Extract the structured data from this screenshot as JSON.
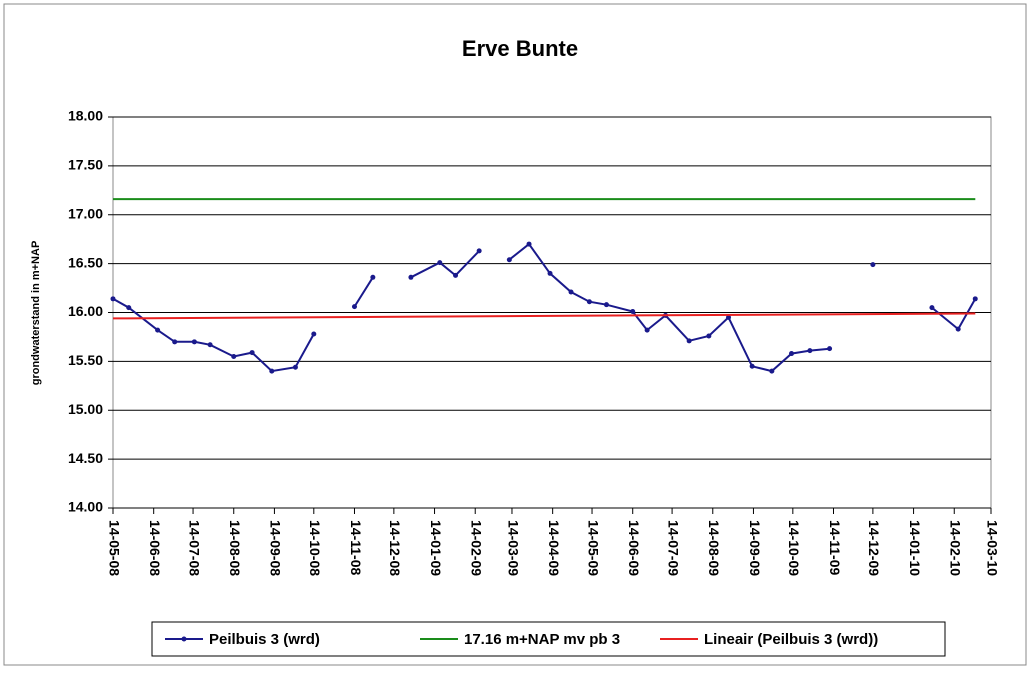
{
  "chart_data": {
    "type": "line",
    "title": "Erve Bunte",
    "y_label": "grondwaterstand in m+NAP",
    "xlim": [
      "2008-05-14",
      "2010-03-14"
    ],
    "xticks": [
      {
        "value": "2008-05-14",
        "label": "14-05-08"
      },
      {
        "value": "2008-06-14",
        "label": "14-06-08"
      },
      {
        "value": "2008-07-14",
        "label": "14-07-08"
      },
      {
        "value": "2008-08-14",
        "label": "14-08-08"
      },
      {
        "value": "2008-09-14",
        "label": "14-09-08"
      },
      {
        "value": "2008-10-14",
        "label": "14-10-08"
      },
      {
        "value": "2008-11-14",
        "label": "14-11-08"
      },
      {
        "value": "2008-12-14",
        "label": "14-12-08"
      },
      {
        "value": "2009-01-14",
        "label": "14-01-09"
      },
      {
        "value": "2009-02-14",
        "label": "14-02-09"
      },
      {
        "value": "2009-03-14",
        "label": "14-03-09"
      },
      {
        "value": "2009-04-14",
        "label": "14-04-09"
      },
      {
        "value": "2009-05-14",
        "label": "14-05-09"
      },
      {
        "value": "2009-06-14",
        "label": "14-06-09"
      },
      {
        "value": "2009-07-14",
        "label": "14-07-09"
      },
      {
        "value": "2009-08-14",
        "label": "14-08-09"
      },
      {
        "value": "2009-09-14",
        "label": "14-09-09"
      },
      {
        "value": "2009-10-14",
        "label": "14-10-09"
      },
      {
        "value": "2009-11-14",
        "label": "14-11-09"
      },
      {
        "value": "2009-12-14",
        "label": "14-12-09"
      },
      {
        "value": "2010-01-14",
        "label": "14-01-10"
      },
      {
        "value": "2010-02-14",
        "label": "14-02-10"
      },
      {
        "value": "2010-03-14",
        "label": "14-03-10"
      }
    ],
    "ylim": [
      14,
      18
    ],
    "yticks": [
      {
        "value": 14,
        "label": "14.00"
      },
      {
        "value": 14.5,
        "label": "14.50"
      },
      {
        "value": 15,
        "label": "15.00"
      },
      {
        "value": 15.5,
        "label": "15.50"
      },
      {
        "value": 16,
        "label": "16.00"
      },
      {
        "value": 16.5,
        "label": "16.50"
      },
      {
        "value": 17,
        "label": "17.00"
      },
      {
        "value": 17.5,
        "label": "17.50"
      },
      {
        "value": 18,
        "label": "18.00"
      }
    ],
    "grid": true,
    "series": [
      {
        "name": "Peilbuis 3 (wrd)",
        "color": "#1a1a8c",
        "markers": true,
        "x": [
          "2008-05-14",
          "2008-05-26",
          "2008-06-17",
          "2008-06-30",
          "2008-07-15",
          "2008-07-27",
          "2008-08-14",
          "2008-08-28",
          "2008-09-12",
          "2008-09-30",
          "2008-10-14",
          "2008-10-29",
          "2008-11-14",
          "2008-11-28",
          "2008-12-12",
          "2008-12-27",
          "2009-01-18",
          "2009-01-30",
          "2009-02-17",
          "2009-02-28",
          "2009-03-12",
          "2009-03-27",
          "2009-04-12",
          "2009-04-28",
          "2009-05-12",
          "2009-05-25",
          "2009-06-14",
          "2009-06-25",
          "2009-07-09",
          "2009-07-27",
          "2009-08-11",
          "2009-08-26",
          "2009-09-13",
          "2009-09-28",
          "2009-10-13",
          "2009-10-27",
          "2009-11-11",
          "2009-11-28",
          "2009-12-14",
          "2010-01-10",
          "2010-01-28",
          "2010-02-17",
          "2010-03-02"
        ],
        "values": [
          16.14,
          16.05,
          15.82,
          15.7,
          15.7,
          15.67,
          15.55,
          15.59,
          15.4,
          15.44,
          15.78,
          null,
          16.06,
          16.36,
          null,
          16.36,
          16.51,
          16.38,
          16.63,
          null,
          16.54,
          16.7,
          16.4,
          16.21,
          16.11,
          16.08,
          16.01,
          15.82,
          15.97,
          15.71,
          15.76,
          15.95,
          15.45,
          15.4,
          15.58,
          15.61,
          15.63,
          null,
          16.49,
          null,
          16.05,
          15.83,
          16.14
        ]
      },
      {
        "name": "17.16 m+NAP mv pb 3",
        "color": "#1a8c1a",
        "x": [
          "2008-05-14",
          "2010-03-02"
        ],
        "values": [
          17.16,
          17.16
        ]
      },
      {
        "name": "Lineair (Peilbuis 3 (wrd))",
        "color": "#e82020",
        "x": [
          "2008-05-14",
          "2010-03-02"
        ],
        "values": [
          15.94,
          15.99
        ]
      }
    ]
  }
}
